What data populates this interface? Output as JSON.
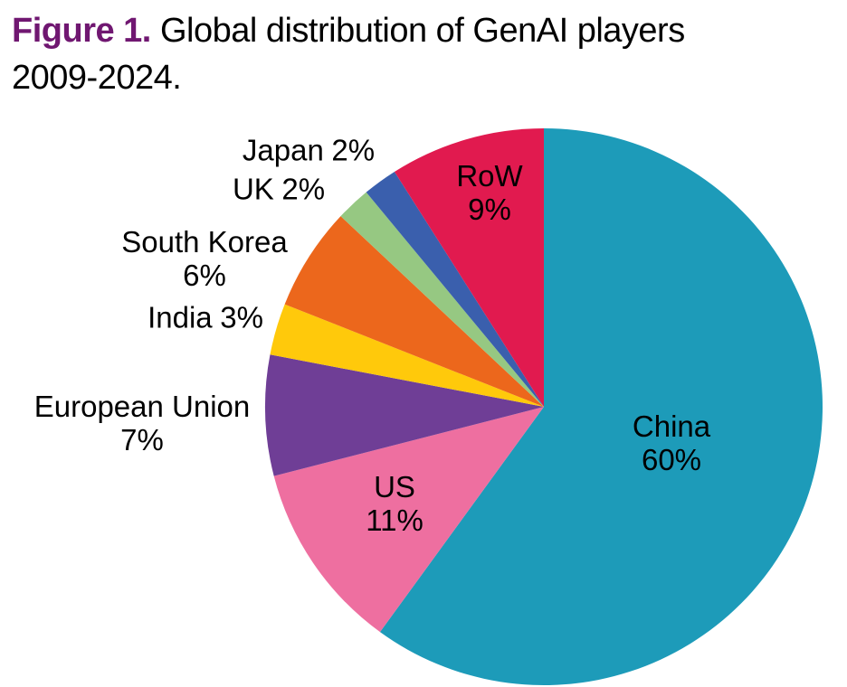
{
  "title": {
    "figure_label": "Figure 1.",
    "line1_rest": "Global distribution of GenAI players",
    "line2": "2009-2024.",
    "figure_label_color": "#701771",
    "text_color": "#000000"
  },
  "chart_data": {
    "type": "pie",
    "title": "Figure 1. Global distribution of GenAI players 2009-2024.",
    "categories": [
      "China",
      "US",
      "European Union",
      "India",
      "South Korea",
      "UK",
      "Japan",
      "RoW"
    ],
    "values": [
      60,
      11,
      7,
      3,
      6,
      2,
      2,
      9
    ],
    "start_angle_deg": 0,
    "direction": "clockwise",
    "legend": "none",
    "label_style": "category name with percent, inside slice for large slices, outside at left for small slices",
    "slices": [
      {
        "id": "china",
        "label": "China",
        "value": 60,
        "pct_label": "60%",
        "color": "#1D9BB9",
        "label_placement": "inside"
      },
      {
        "id": "us",
        "label": "US",
        "value": 11,
        "pct_label": "11%",
        "color": "#EE6FA0",
        "label_placement": "inside"
      },
      {
        "id": "european-union",
        "label": "European Union",
        "value": 7,
        "pct_label": "7%",
        "color": "#6F3E96",
        "label_placement": "outside"
      },
      {
        "id": "india",
        "label": "India",
        "value": 3,
        "pct_label": "3%",
        "color": "#FFC90B",
        "label_placement": "outside"
      },
      {
        "id": "south-korea",
        "label": "South Korea",
        "value": 6,
        "pct_label": "6%",
        "color": "#EC671C",
        "label_placement": "outside"
      },
      {
        "id": "uk",
        "label": "UK",
        "value": 2,
        "pct_label": "2%",
        "color": "#96C882",
        "label_placement": "outside"
      },
      {
        "id": "japan",
        "label": "Japan",
        "value": 2,
        "pct_label": "2%",
        "color": "#3A5FAD",
        "label_placement": "outside"
      },
      {
        "id": "row",
        "label": "RoW",
        "value": 9,
        "pct_label": "9%",
        "color": "#E11A4F",
        "label_placement": "inside"
      }
    ]
  }
}
